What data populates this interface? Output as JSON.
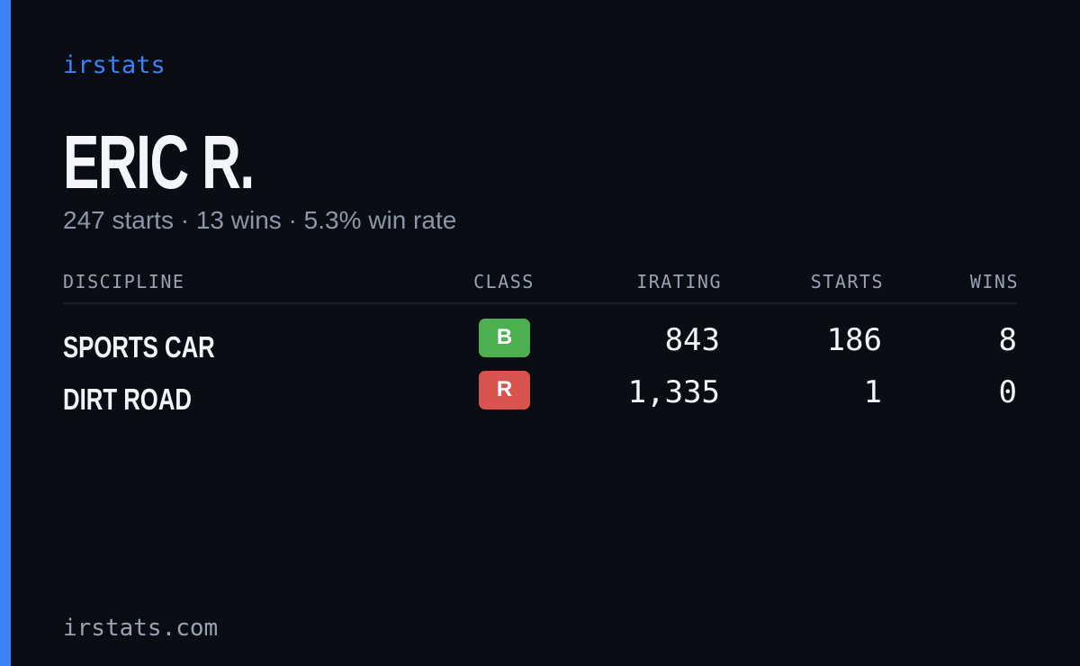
{
  "brand": "irstats",
  "profile": {
    "name": "ERIC R.",
    "summary": "247 starts · 13 wins · 5.3% win rate"
  },
  "table": {
    "headers": [
      "DISCIPLINE",
      "CLASS",
      "IRATING",
      "STARTS",
      "WINS"
    ],
    "rows": [
      [
        "SPORTS CAR",
        "B",
        "843",
        "186",
        "8"
      ],
      [
        "DIRT ROAD",
        "R",
        "1,335",
        "1",
        "0"
      ]
    ]
  },
  "footer": "irstats.com"
}
